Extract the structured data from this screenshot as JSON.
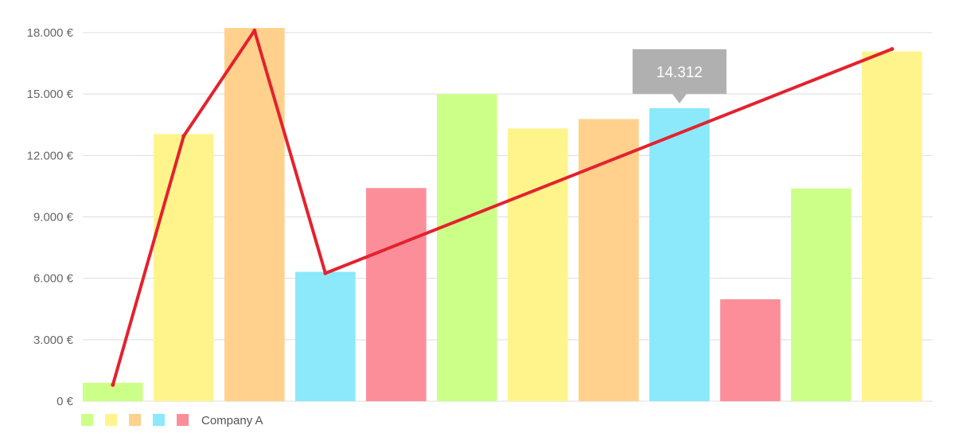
{
  "chart_data": {
    "type": "bar",
    "categories": [
      "",
      "",
      "",
      "",
      "",
      "",
      "",
      "",
      "",
      "",
      "",
      ""
    ],
    "values": [
      900,
      13050,
      18230,
      6320,
      10410,
      15000,
      13320,
      13780,
      14312,
      4980,
      10390,
      17080
    ],
    "line_values": [
      800,
      12950,
      18100,
      6250,
      null,
      null,
      null,
      null,
      null,
      null,
      null,
      17200
    ],
    "bar_colors": [
      "#ccff88",
      "#fff48c",
      "#ffd18c",
      "#8ce8fb",
      "#fc8e9a",
      "#ccff88",
      "#fff48c",
      "#ffd18c",
      "#8ce8fb",
      "#fc8e9a",
      "#ccff88",
      "#fff48c"
    ],
    "line_color": "#e3222e",
    "ylim": [
      0,
      18000
    ],
    "yticks": [
      0,
      3000,
      6000,
      9000,
      12000,
      15000,
      18000
    ],
    "ytick_labels": [
      "0 €",
      "3.000 €",
      "6.000 €",
      "9.000 €",
      "12.000 €",
      "15.000 €",
      "18.000 €"
    ],
    "grid": true,
    "legend": {
      "placement": "bottom-left",
      "swatches": [
        "#ccff88",
        "#fff48c",
        "#ffd18c",
        "#8ce8fb",
        "#fc8e9a"
      ],
      "label": "Company A"
    },
    "tooltip": {
      "bar_index": 8,
      "text": "14.312",
      "color": "#b0b0b0"
    },
    "colors": {
      "grid": "#dddddd",
      "axis_text": "#666666"
    }
  }
}
